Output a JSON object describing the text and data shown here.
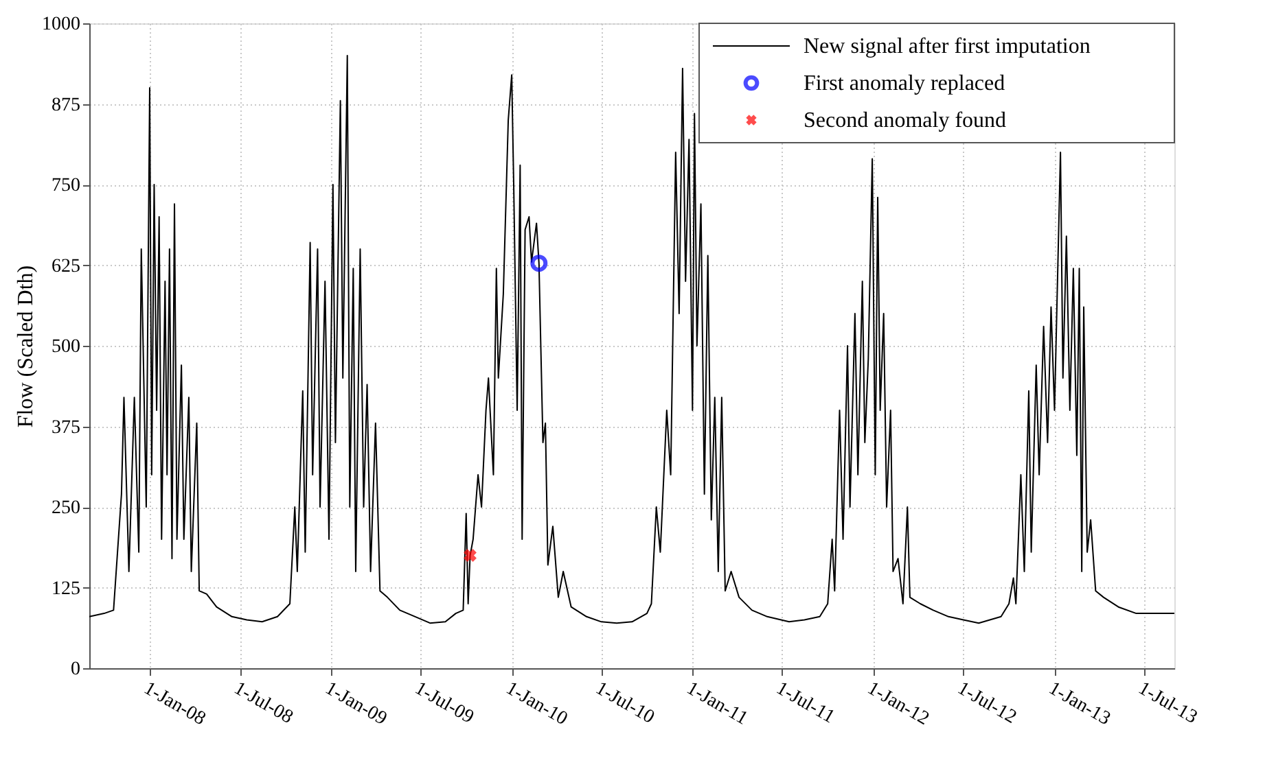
{
  "chart_data": {
    "type": "line",
    "ylabel": "Flow (Scaled Dth)",
    "xlim": [
      "2007-09-01",
      "2013-08-31"
    ],
    "ylim": [
      0,
      1000
    ],
    "yticks": [
      0,
      125,
      250,
      375,
      500,
      625,
      750,
      875,
      {
        "value": 1000,
        "label": "1000"
      }
    ],
    "xticks": [
      {
        "value": "2008-01-01",
        "label": "1-Jan-08"
      },
      {
        "value": "2008-07-01",
        "label": "1-Jul-08"
      },
      {
        "value": "2009-01-01",
        "label": "1-Jan-09"
      },
      {
        "value": "2009-07-01",
        "label": "1-Jul-09"
      },
      {
        "value": "2010-01-01",
        "label": "1-Jan-10"
      },
      {
        "value": "2010-07-01",
        "label": "1-Jul-10"
      },
      {
        "value": "2011-01-01",
        "label": "1-Jan-11"
      },
      {
        "value": "2011-07-01",
        "label": "1-Jul-11"
      },
      {
        "value": "2012-01-01",
        "label": "1-Jan-12"
      },
      {
        "value": "2012-07-01",
        "label": "1-Jul-12"
      },
      {
        "value": "2013-01-01",
        "label": "1-Jan-13"
      },
      {
        "value": "2013-07-01",
        "label": "1-Jul-13"
      }
    ],
    "grid": true,
    "legend": "top right",
    "series": [
      {
        "name": "New signal after first imputation",
        "type": "line",
        "color": "#000000",
        "marker": "none",
        "line_style": "solid",
        "x": [
          "2007-09-01",
          "2007-10-01",
          "2007-10-20",
          "2007-11-05",
          "2007-11-10",
          "2007-11-20",
          "2007-12-01",
          "2007-12-10",
          "2007-12-15",
          "2007-12-25",
          "2008-01-01",
          "2008-01-05",
          "2008-01-10",
          "2008-01-15",
          "2008-01-20",
          "2008-01-25",
          "2008-02-01",
          "2008-02-05",
          "2008-02-10",
          "2008-02-15",
          "2008-02-20",
          "2008-02-25",
          "2008-03-05",
          "2008-03-10",
          "2008-03-20",
          "2008-03-25",
          "2008-04-05",
          "2008-04-10",
          "2008-04-25",
          "2008-05-15",
          "2008-06-15",
          "2008-07-15",
          "2008-08-15",
          "2008-09-15",
          "2008-10-10",
          "2008-10-20",
          "2008-10-25",
          "2008-11-05",
          "2008-11-10",
          "2008-11-20",
          "2008-11-25",
          "2008-12-05",
          "2008-12-10",
          "2008-12-20",
          "2008-12-28",
          "2009-01-05",
          "2009-01-10",
          "2009-01-20",
          "2009-01-25",
          "2009-02-03",
          "2009-02-08",
          "2009-02-15",
          "2009-02-20",
          "2009-03-01",
          "2009-03-08",
          "2009-03-15",
          "2009-03-22",
          "2009-04-01",
          "2009-04-10",
          "2009-04-25",
          "2009-05-20",
          "2009-06-20",
          "2009-07-20",
          "2009-08-20",
          "2009-09-10",
          "2009-09-25",
          "2009-10-01",
          "2009-10-05",
          "2009-10-09",
          "2009-10-15",
          "2009-10-25",
          "2009-11-01",
          "2009-11-10",
          "2009-11-15",
          "2009-11-25",
          "2009-12-01",
          "2009-12-05",
          "2009-12-15",
          "2009-12-25",
          "2010-01-01",
          "2010-01-05",
          "2010-01-12",
          "2010-01-18",
          "2010-01-22",
          "2010-01-28",
          "2010-02-05",
          "2010-02-10",
          "2010-02-20",
          "2010-02-25",
          "2010-03-05",
          "2010-03-10",
          "2010-03-15",
          "2010-03-25",
          "2010-04-05",
          "2010-04-15",
          "2010-05-01",
          "2010-06-01",
          "2010-07-01",
          "2010-08-01",
          "2010-09-01",
          "2010-10-01",
          "2010-10-10",
          "2010-10-20",
          "2010-10-28",
          "2010-11-10",
          "2010-11-18",
          "2010-11-28",
          "2010-12-05",
          "2010-12-12",
          "2010-12-18",
          "2010-12-25",
          "2011-01-01",
          "2011-01-05",
          "2011-01-10",
          "2011-01-18",
          "2011-01-25",
          "2011-02-01",
          "2011-02-08",
          "2011-02-15",
          "2011-02-22",
          "2011-03-01",
          "2011-03-08",
          "2011-03-20",
          "2011-04-05",
          "2011-05-01",
          "2011-06-01",
          "2011-07-15",
          "2011-08-15",
          "2011-09-15",
          "2011-10-01",
          "2011-10-10",
          "2011-10-15",
          "2011-10-25",
          "2011-11-01",
          "2011-11-10",
          "2011-11-15",
          "2011-11-25",
          "2011-12-01",
          "2011-12-10",
          "2011-12-15",
          "2011-12-22",
          "2011-12-30",
          "2012-01-05",
          "2012-01-10",
          "2012-01-15",
          "2012-01-22",
          "2012-01-28",
          "2012-02-05",
          "2012-02-10",
          "2012-02-20",
          "2012-03-01",
          "2012-03-10",
          "2012-03-15",
          "2012-04-05",
          "2012-05-01",
          "2012-06-01",
          "2012-07-01",
          "2012-08-01",
          "2012-09-15",
          "2012-10-01",
          "2012-10-10",
          "2012-10-15",
          "2012-10-25",
          "2012-11-01",
          "2012-11-10",
          "2012-11-15",
          "2012-11-25",
          "2012-12-01",
          "2012-12-10",
          "2012-12-18",
          "2012-12-25",
          "2013-01-01",
          "2013-01-13",
          "2013-01-18",
          "2013-01-25",
          "2013-02-01",
          "2013-02-08",
          "2013-02-15",
          "2013-02-20",
          "2013-02-25",
          "2013-03-01",
          "2013-03-08",
          "2013-03-15",
          "2013-03-25",
          "2013-04-10",
          "2013-05-10",
          "2013-06-15",
          "2013-07-15",
          "2013-08-31"
        ],
        "values": [
          80,
          85,
          90,
          270,
          420,
          150,
          420,
          180,
          650,
          250,
          900,
          300,
          750,
          400,
          700,
          200,
          600,
          300,
          650,
          170,
          720,
          200,
          470,
          200,
          420,
          150,
          380,
          120,
          115,
          95,
          80,
          75,
          72,
          80,
          100,
          250,
          150,
          430,
          180,
          660,
          300,
          650,
          250,
          600,
          200,
          750,
          350,
          880,
          450,
          950,
          250,
          620,
          150,
          650,
          250,
          440,
          150,
          380,
          120,
          110,
          90,
          80,
          70,
          72,
          85,
          90,
          240,
          100,
          175,
          200,
          300,
          250,
          400,
          450,
          300,
          620,
          450,
          580,
          850,
          920,
          750,
          400,
          780,
          200,
          680,
          700,
          630,
          690,
          628,
          350,
          380,
          160,
          220,
          110,
          150,
          95,
          80,
          72,
          70,
          72,
          85,
          100,
          250,
          180,
          400,
          300,
          800,
          550,
          930,
          600,
          820,
          400,
          860,
          500,
          720,
          270,
          640,
          230,
          420,
          150,
          420,
          120,
          150,
          110,
          90,
          80,
          72,
          75,
          80,
          100,
          200,
          120,
          400,
          200,
          500,
          250,
          550,
          300,
          600,
          350,
          480,
          790,
          300,
          730,
          400,
          550,
          250,
          400,
          150,
          170,
          100,
          250,
          110,
          100,
          90,
          80,
          75,
          70,
          80,
          100,
          140,
          100,
          300,
          150,
          430,
          180,
          470,
          300,
          530,
          350,
          560,
          400,
          800,
          450,
          670,
          400,
          620,
          330,
          620,
          150,
          560,
          180,
          230,
          120,
          110,
          95,
          85,
          85,
          85
        ]
      },
      {
        "name": "First anomaly replaced",
        "type": "scatter",
        "color": "#0000ff",
        "marker": "circle",
        "x": [
          "2010-02-25"
        ],
        "values": [
          628
        ]
      },
      {
        "name": "Second anomaly found",
        "type": "scatter",
        "color": "#ff0000",
        "marker": "cross",
        "x": [
          "2009-10-09"
        ],
        "values": [
          175
        ]
      }
    ]
  }
}
